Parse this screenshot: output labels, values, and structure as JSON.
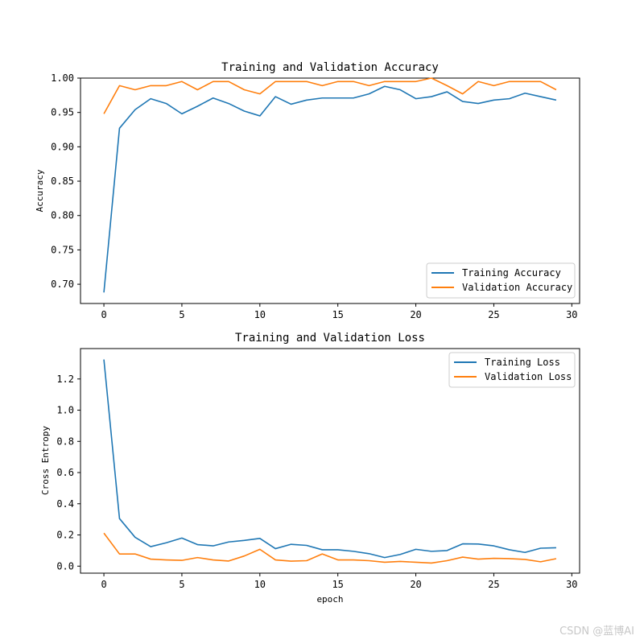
{
  "chart_data": [
    {
      "type": "line",
      "title": "Training and Validation Accuracy",
      "xlabel": "",
      "ylabel": "Accuracy",
      "xlim": [
        -1.5,
        30.5
      ],
      "ylim": [
        0.672,
        1.0
      ],
      "xticks": [
        0,
        5,
        10,
        15,
        20,
        25,
        30
      ],
      "yticks": [
        0.7,
        0.75,
        0.8,
        0.85,
        0.9,
        0.95,
        1.0
      ],
      "ytick_decimals": 2,
      "legend_position": "lower-right",
      "series": [
        {
          "name": "Training Accuracy",
          "color": "#1f77b4",
          "x": [
            0,
            1,
            2,
            3,
            4,
            5,
            6,
            7,
            8,
            9,
            10,
            11,
            12,
            13,
            14,
            15,
            16,
            17,
            18,
            19,
            20,
            21,
            22,
            23,
            24,
            25,
            26,
            27,
            28,
            29
          ],
          "values": [
            0.688,
            0.927,
            0.954,
            0.97,
            0.963,
            0.948,
            0.959,
            0.971,
            0.963,
            0.952,
            0.945,
            0.973,
            0.962,
            0.968,
            0.971,
            0.971,
            0.971,
            0.977,
            0.988,
            0.983,
            0.97,
            0.973,
            0.98,
            0.966,
            0.963,
            0.968,
            0.97,
            0.978,
            0.973,
            0.968
          ]
        },
        {
          "name": "Validation Accuracy",
          "color": "#ff7f0e",
          "x": [
            0,
            1,
            2,
            3,
            4,
            5,
            6,
            7,
            8,
            9,
            10,
            11,
            12,
            13,
            14,
            15,
            16,
            17,
            18,
            19,
            20,
            21,
            22,
            23,
            24,
            25,
            26,
            27,
            28,
            29
          ],
          "values": [
            0.948,
            0.989,
            0.983,
            0.989,
            0.989,
            0.995,
            0.983,
            0.995,
            0.995,
            0.983,
            0.977,
            0.995,
            0.995,
            0.995,
            0.989,
            0.995,
            0.995,
            0.989,
            0.995,
            0.995,
            0.995,
            1.0,
            0.989,
            0.977,
            0.995,
            0.989,
            0.995,
            0.995,
            0.995,
            0.983
          ]
        }
      ]
    },
    {
      "type": "line",
      "title": "Training and Validation Loss",
      "xlabel": "epoch",
      "ylabel": "Cross Entropy",
      "xlim": [
        -1.5,
        30.5
      ],
      "ylim": [
        -0.045,
        1.395
      ],
      "xticks": [
        0,
        5,
        10,
        15,
        20,
        25,
        30
      ],
      "yticks": [
        0.0,
        0.2,
        0.4,
        0.6,
        0.8,
        1.0,
        1.2
      ],
      "ytick_decimals": 1,
      "legend_position": "upper-right",
      "series": [
        {
          "name": "Training Loss",
          "color": "#1f77b4",
          "x": [
            0,
            1,
            2,
            3,
            4,
            5,
            6,
            7,
            8,
            9,
            10,
            11,
            12,
            13,
            14,
            15,
            16,
            17,
            18,
            19,
            20,
            21,
            22,
            23,
            24,
            25,
            26,
            27,
            28,
            29
          ],
          "values": [
            1.325,
            0.305,
            0.185,
            0.125,
            0.15,
            0.18,
            0.138,
            0.13,
            0.155,
            0.165,
            0.178,
            0.112,
            0.14,
            0.133,
            0.105,
            0.105,
            0.095,
            0.08,
            0.055,
            0.075,
            0.108,
            0.095,
            0.1,
            0.143,
            0.142,
            0.13,
            0.105,
            0.088,
            0.115,
            0.118
          ]
        },
        {
          "name": "Validation Loss",
          "color": "#ff7f0e",
          "x": [
            0,
            1,
            2,
            3,
            4,
            5,
            6,
            7,
            8,
            9,
            10,
            11,
            12,
            13,
            14,
            15,
            16,
            17,
            18,
            19,
            20,
            21,
            22,
            23,
            24,
            25,
            26,
            27,
            28,
            29
          ],
          "values": [
            0.212,
            0.078,
            0.078,
            0.045,
            0.04,
            0.037,
            0.055,
            0.04,
            0.033,
            0.065,
            0.108,
            0.04,
            0.032,
            0.035,
            0.078,
            0.04,
            0.04,
            0.035,
            0.025,
            0.03,
            0.025,
            0.02,
            0.035,
            0.058,
            0.045,
            0.05,
            0.048,
            0.043,
            0.028,
            0.048
          ]
        }
      ]
    }
  ],
  "watermark": "CSDN @蓝博AI"
}
